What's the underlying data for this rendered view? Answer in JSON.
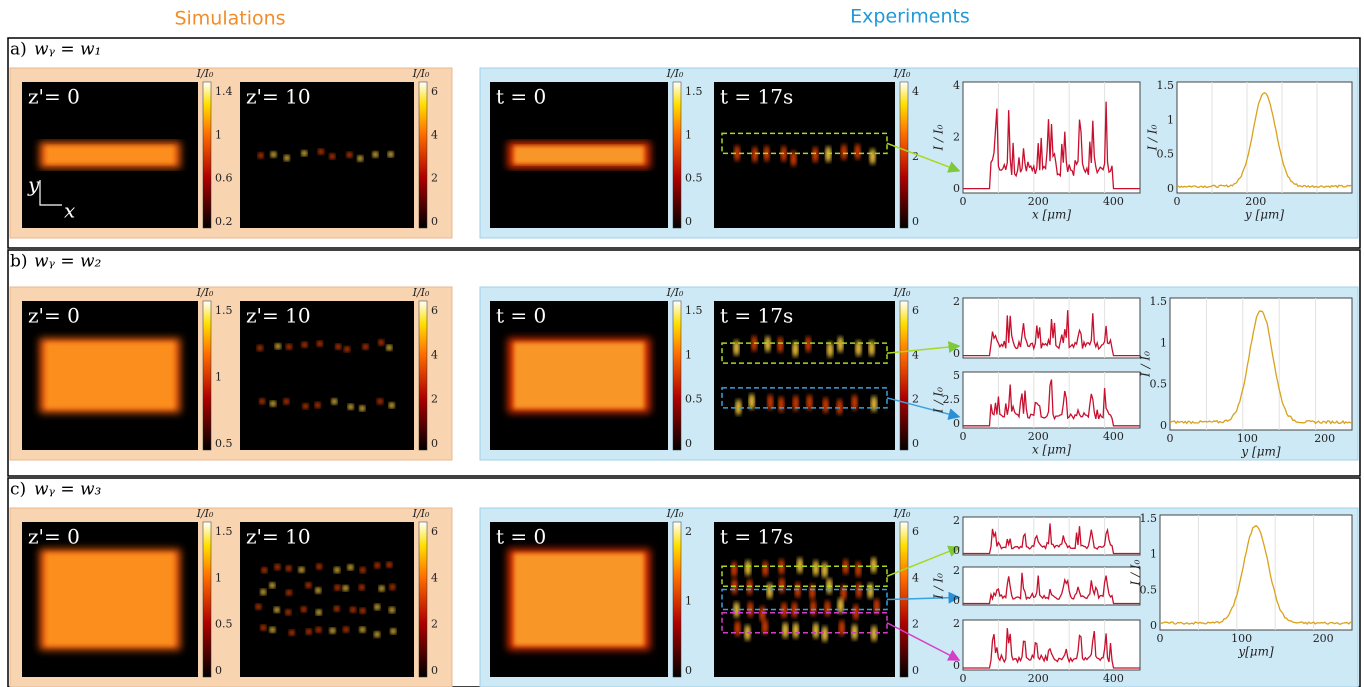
{
  "header": {
    "simulations": "Simulations",
    "experiments": "Experiments"
  },
  "rows": [
    {
      "label": "a)",
      "condition": "wᵧ = w₁",
      "sims": [
        {
          "label": "z'= 0",
          "cbar_title": "I/I₀",
          "cbar_ticks": [
            "1.4",
            "1",
            "0.6",
            "0.2"
          ]
        },
        {
          "label": "z'= 10",
          "cbar_title": "I/I₀",
          "cbar_ticks": [
            "6",
            "4",
            "2",
            "0"
          ]
        }
      ],
      "exps": [
        {
          "label": "t = 0",
          "cbar_title": "I/I₀",
          "cbar_ticks": [
            "1.5",
            "1",
            "0.5",
            "0"
          ]
        },
        {
          "label": "t = 17s",
          "cbar_title": "I/I₀",
          "cbar_ticks": [
            "4",
            "2",
            "0"
          ]
        }
      ],
      "axes_hint": {
        "y": "y",
        "x": "x"
      },
      "profiles": [
        {
          "yticks": [
            "4",
            "2",
            "0"
          ],
          "xticks": [
            "0",
            "200",
            "400"
          ],
          "xlabel": "x [μm]",
          "ylabel": "I / I₀"
        },
        {
          "yticks": [
            "1.5",
            "1",
            "0.5",
            "0"
          ],
          "xticks": [
            "0",
            "200"
          ],
          "xlabel": "y [μm]",
          "ylabel": "I / I₀"
        }
      ]
    },
    {
      "label": "b)",
      "condition": "wᵧ = w₂",
      "sims": [
        {
          "label": "z'= 0",
          "cbar_title": "I/I₀",
          "cbar_ticks": [
            "1.5",
            "1",
            "0.5"
          ]
        },
        {
          "label": "z'= 10",
          "cbar_title": "I/I₀",
          "cbar_ticks": [
            "6",
            "4",
            "2",
            "0"
          ]
        }
      ],
      "exps": [
        {
          "label": "t = 0",
          "cbar_title": "I/I₀",
          "cbar_ticks": [
            "1.5",
            "1",
            "0.5",
            "0"
          ]
        },
        {
          "label": "t = 17s",
          "cbar_title": "I/I₀",
          "cbar_ticks": [
            "6",
            "4",
            "2",
            "0"
          ]
        }
      ],
      "profiles": [
        {
          "yticks": [
            "2",
            "0"
          ]
        },
        {
          "yticks": [
            "5",
            "2.5",
            "0"
          ],
          "xticks": [
            "0",
            "200",
            "400"
          ],
          "xlabel": "x [μm]",
          "ylabel": "I / I₀"
        },
        {
          "yticks": [
            "1.5",
            "1",
            "0.5",
            "0"
          ],
          "xticks": [
            "0",
            "100",
            "200"
          ],
          "xlabel": "y [μm]",
          "ylabel": "I / I₀"
        }
      ]
    },
    {
      "label": "c)",
      "condition": "wᵧ = w₃",
      "sims": [
        {
          "label": "z'= 0",
          "cbar_title": "I/I₀",
          "cbar_ticks": [
            "1.5",
            "1",
            "0.5",
            "0"
          ]
        },
        {
          "label": "z'= 10",
          "cbar_title": "I/I₀",
          "cbar_ticks": [
            "6",
            "4",
            "2",
            "0"
          ]
        }
      ],
      "exps": [
        {
          "label": "t = 0",
          "cbar_title": "I/I₀",
          "cbar_ticks": [
            "2",
            "1",
            "0"
          ]
        },
        {
          "label": "t = 17s",
          "cbar_title": "I/I₀",
          "cbar_ticks": [
            "6",
            "4",
            "2",
            "0"
          ]
        }
      ],
      "profiles": [
        {
          "yticks": [
            "2",
            "0"
          ]
        },
        {
          "yticks": [
            "2",
            "0"
          ],
          "ylabel": "I / I₀"
        },
        {
          "yticks": [
            "2",
            "0"
          ],
          "xticks": [
            "0",
            "200",
            "400"
          ]
        },
        {
          "yticks": [
            "1.5",
            "1",
            "0.5",
            "0"
          ],
          "xticks": [
            "0",
            "100",
            "200"
          ],
          "xlabel": "y[μm]",
          "ylabel": "I / I₀"
        }
      ]
    }
  ]
}
